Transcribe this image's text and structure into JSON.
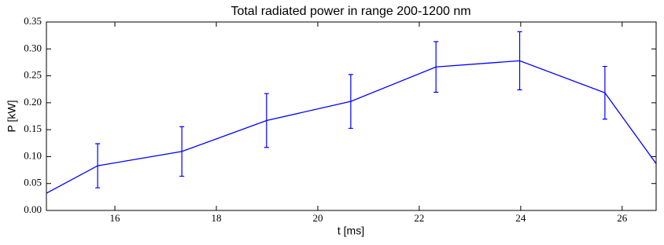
{
  "chart_data": {
    "type": "line",
    "title": "Total radiated power in range 200-1200 nm",
    "x_label": "t [ms]",
    "y_label": "P [kW]",
    "x": [
      14.65,
      15.66,
      17.32,
      18.99,
      20.65,
      22.33,
      23.98,
      25.66,
      26.67
    ],
    "series": [
      {
        "color": "#0000ff",
        "values": [
          0.032,
          0.083,
          0.1095,
          0.167,
          0.2025,
          0.2665,
          0.278,
          0.2185,
          0.087
        ],
        "errors": [
          null,
          0.041,
          0.046,
          0.05,
          0.05,
          0.047,
          0.054,
          0.049,
          null
        ]
      }
    ],
    "xlim": [
      14.65,
      26.67
    ],
    "xticks": [
      16,
      18,
      20,
      22,
      24,
      26
    ],
    "ylim": [
      0,
      0.35
    ],
    "yticks": [
      {
        "value": 0,
        "label": "0.00"
      },
      {
        "value": 0.05,
        "label": "0.05"
      },
      {
        "value": 0.1,
        "label": "0.10"
      },
      {
        "value": 0.15,
        "label": "0.15"
      },
      {
        "value": 0.2,
        "label": "0.20"
      },
      {
        "value": 0.25,
        "label": "0.25"
      },
      {
        "value": 0.3,
        "label": "0.30"
      },
      {
        "value": 0.35,
        "label": "0.35"
      }
    ]
  }
}
